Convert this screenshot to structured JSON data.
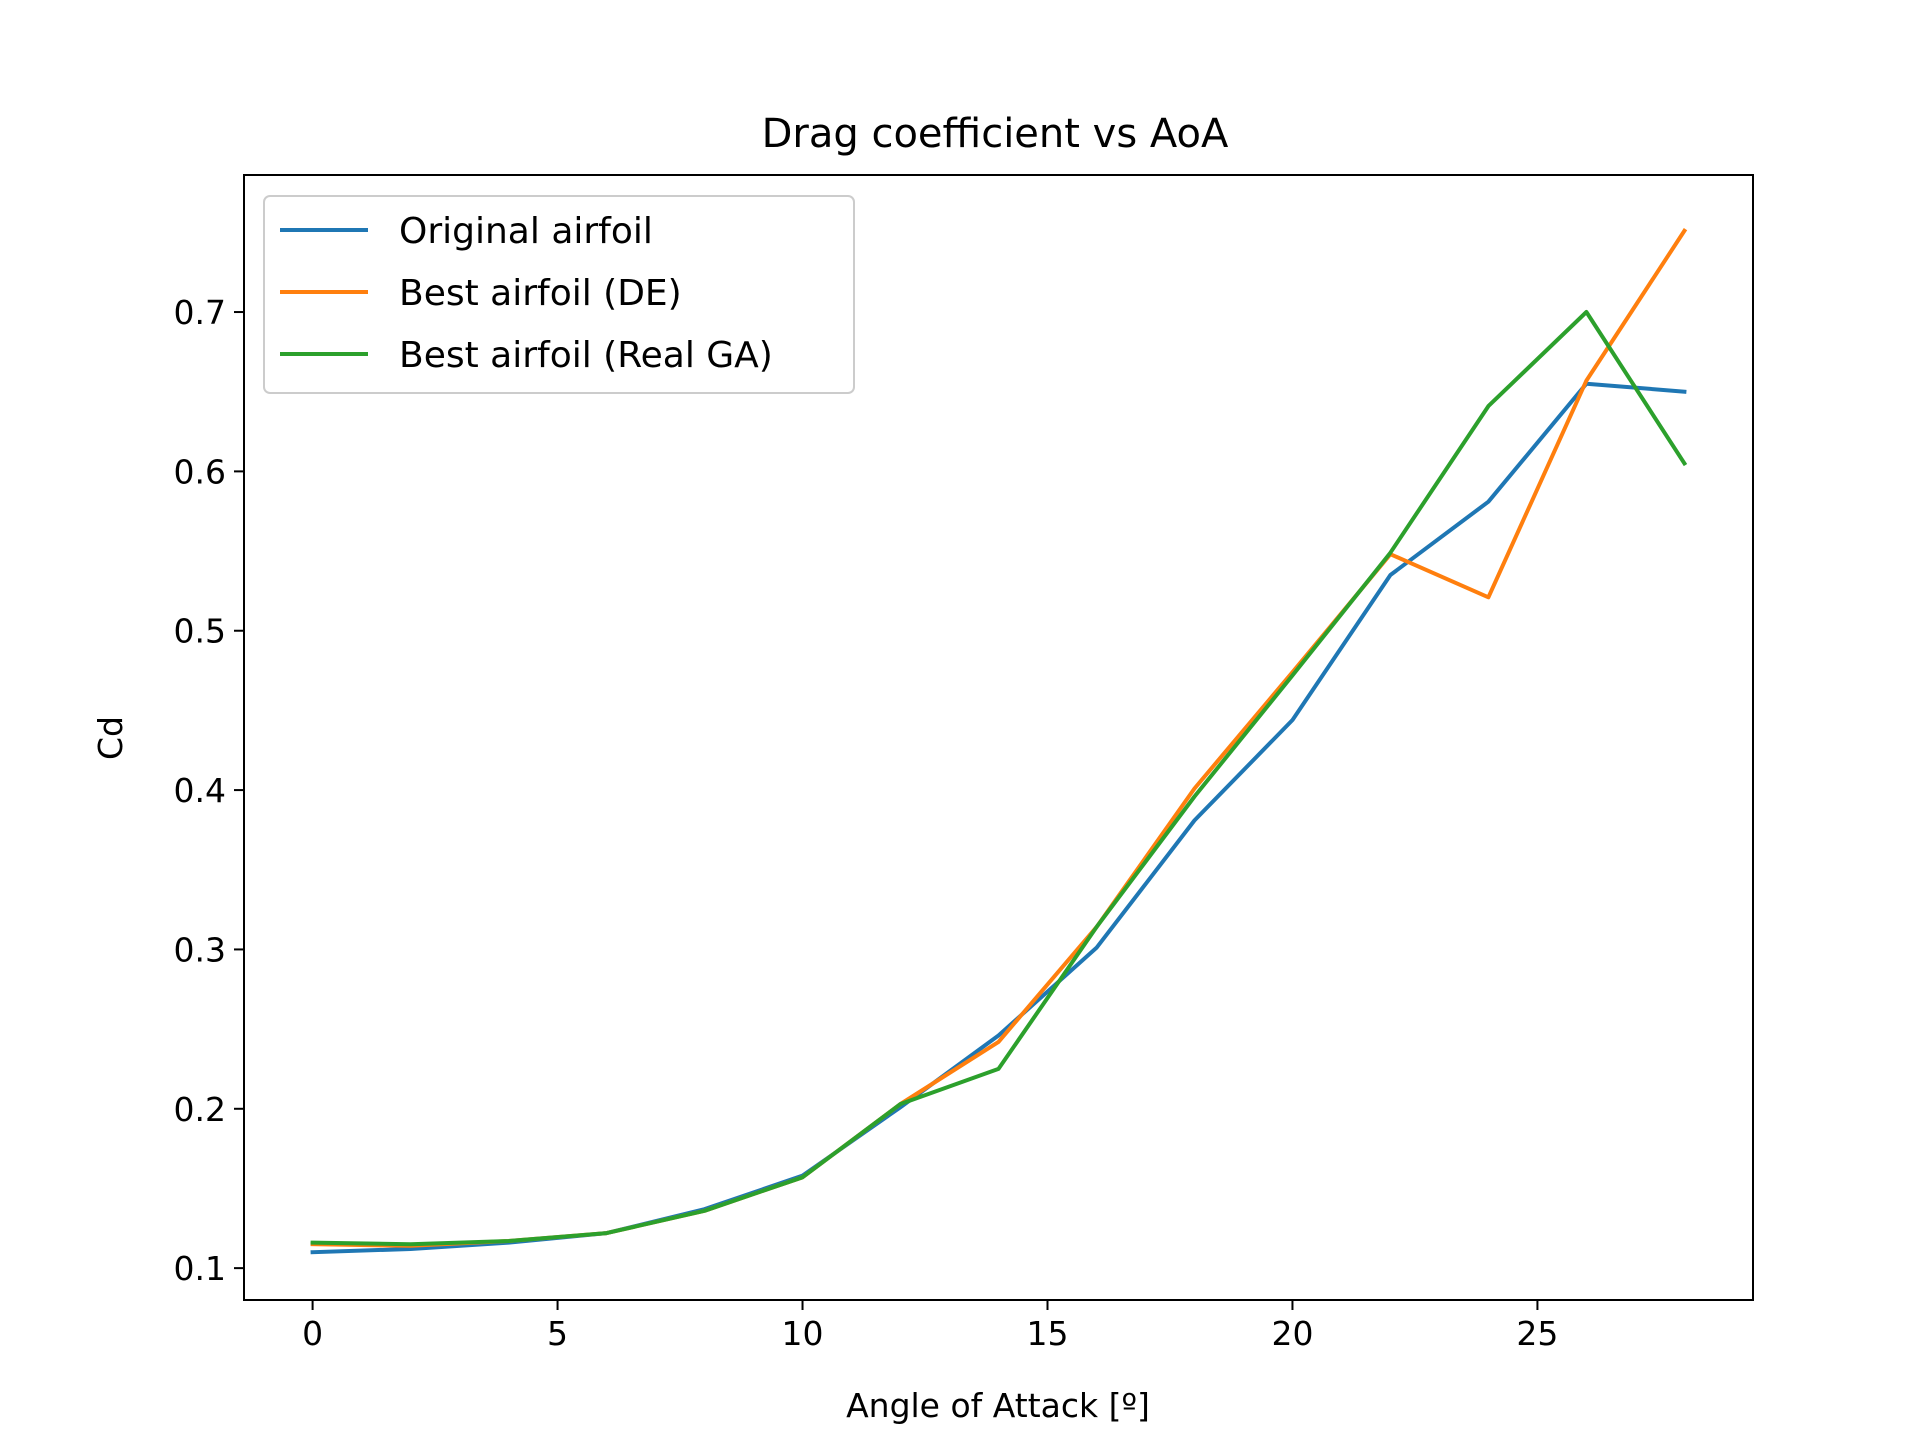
{
  "chart_data": {
    "type": "line",
    "title": "Drag coefficient vs AoA",
    "xlabel": "Angle of Attack [º]",
    "ylabel": "Cd",
    "xlim": [
      -1.4,
      29.4
    ],
    "ylim": [
      0.08,
      0.786
    ],
    "xticks": [
      0,
      5,
      10,
      15,
      20,
      25
    ],
    "yticks": [
      0.1,
      0.2,
      0.3,
      0.4,
      0.5,
      0.6,
      0.7
    ],
    "x": [
      0,
      2,
      4,
      6,
      8,
      10,
      12,
      14,
      16,
      18,
      20,
      22,
      24,
      26,
      28
    ],
    "series": [
      {
        "name": "Original airfoil",
        "color": "#1f77b4",
        "values": [
          0.11,
          0.112,
          0.116,
          0.122,
          0.137,
          0.158,
          0.201,
          0.246,
          0.301,
          0.381,
          0.444,
          0.535,
          0.581,
          0.655,
          0.65
        ]
      },
      {
        "name": "Best airfoil (DE)",
        "color": "#ff7f0e",
        "values": [
          0.115,
          0.114,
          0.117,
          0.122,
          0.136,
          0.157,
          0.203,
          0.242,
          0.314,
          0.401,
          0.474,
          0.548,
          0.521,
          0.657,
          0.751
        ]
      },
      {
        "name": "Best airfoil (Real GA)",
        "color": "#2ca02c",
        "values": [
          0.116,
          0.115,
          0.117,
          0.122,
          0.136,
          0.157,
          0.203,
          0.225,
          0.314,
          0.396,
          0.472,
          0.549,
          0.641,
          0.7,
          0.605
        ]
      }
    ],
    "legend_position": "upper-left",
    "grid": false
  }
}
